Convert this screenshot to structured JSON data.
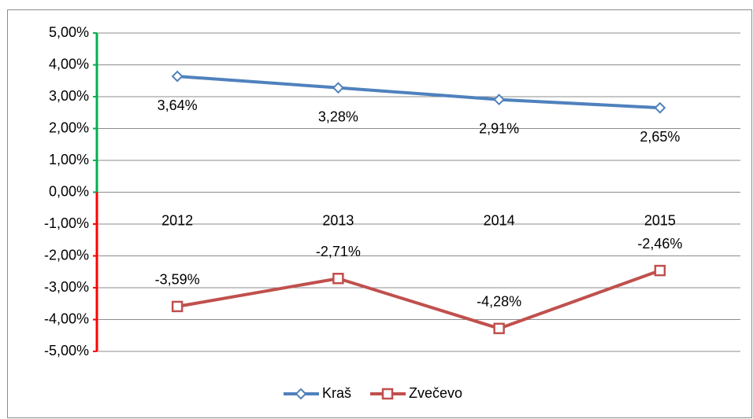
{
  "chart_data": {
    "type": "line",
    "categories": [
      "2012",
      "2013",
      "2014",
      "2015"
    ],
    "series": [
      {
        "name": "Kraš",
        "color": "#4f81bd",
        "marker": "diamond",
        "values": [
          3.64,
          3.28,
          2.91,
          2.65
        ],
        "value_labels": [
          "3,64%",
          "3,28%",
          "2,91%",
          "2,65%"
        ]
      },
      {
        "name": "Zvečevo",
        "color": "#c0504d",
        "marker": "square",
        "values": [
          -3.59,
          -2.71,
          -4.28,
          -2.46
        ],
        "value_labels": [
          "-3,59%",
          "-2,71%",
          "-4,28%",
          "-2,46%"
        ]
      }
    ],
    "ylim": [
      -5,
      5
    ],
    "yticks": [
      {
        "value": 5,
        "label": "5,00%"
      },
      {
        "value": 4,
        "label": "4,00%"
      },
      {
        "value": 3,
        "label": "3,00%"
      },
      {
        "value": 2,
        "label": "2,00%"
      },
      {
        "value": 1,
        "label": "1,00%"
      },
      {
        "value": 0,
        "label": "0,00%"
      },
      {
        "value": -1,
        "label": "-1,00%"
      },
      {
        "value": -2,
        "label": "-2,00%"
      },
      {
        "value": -3,
        "label": "-3,00%"
      },
      {
        "value": -4,
        "label": "-4,00%"
      },
      {
        "value": -5,
        "label": "-5,00%"
      }
    ],
    "grid": true,
    "legend": "bottom"
  }
}
